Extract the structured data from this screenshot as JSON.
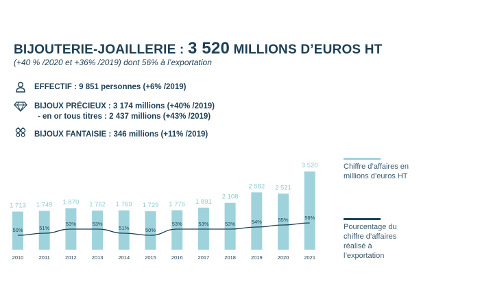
{
  "header": {
    "title_prefix": "BIJOUTERIE-JOAILLERIE : ",
    "title_value": "3 520",
    "title_suffix": " MILLIONS D’EUROS HT",
    "subtitle": "(+40 % /2020 et +36% /2019) dont 56% à l’exportation"
  },
  "stats": [
    {
      "icon": "person-icon",
      "text": "EFFECTIF : 9 851 personnes (+6% /2019)"
    },
    {
      "icon": "diamond-icon",
      "text": "BIJOUX PRÉCIEUX : 3 174 millions (+40% /2019)",
      "sub": "- en or tous titres : 2 437 millions (+43% /2019)"
    },
    {
      "icon": "jewels-icon",
      "text": "BIJOUX FANTAISIE : 346 millions (+11% /2019)"
    }
  ],
  "legend": {
    "bars": "Chiffre d’affaires en millions d’euros HT",
    "line": "Pourcentage du chiffre d’affaires réalisé à l’exportation"
  },
  "colors": {
    "bar": "#9fd3dc",
    "line": "#1d3f55",
    "bar_label": "#8ecbd5",
    "title": "#1d3f55"
  },
  "chart_data": {
    "type": "bar",
    "categories": [
      "2010",
      "2011",
      "2012",
      "2013",
      "2014",
      "2015",
      "2016",
      "2017",
      "2018",
      "2019",
      "2020",
      "2021"
    ],
    "series": [
      {
        "name": "Chiffre d’affaires en millions d’euros HT",
        "values": [
          1713,
          1749,
          1870,
          1762,
          1769,
          1729,
          1776,
          1891,
          2108,
          2582,
          2521,
          3520
        ],
        "labels": [
          "1 713",
          "1 749",
          "1 870",
          "1 762",
          "1 769",
          "1 729",
          "1 776",
          "1 891",
          "2 108",
          "2 582",
          "2 521",
          "3 520"
        ]
      },
      {
        "name": "Pourcentage du chiffre d’affaires réalisé à l’exportation",
        "type": "line",
        "values": [
          50,
          51,
          53,
          53,
          51,
          50,
          53,
          53,
          53,
          54,
          55,
          56
        ],
        "labels": [
          "50%",
          "51%",
          "53%",
          "53%",
          "51%",
          "50%",
          "53%",
          "53%",
          "53%",
          "54%",
          "55%",
          "56%"
        ]
      }
    ],
    "ylim": [
      0,
      3600
    ],
    "grid": false,
    "legend_position": "right"
  }
}
